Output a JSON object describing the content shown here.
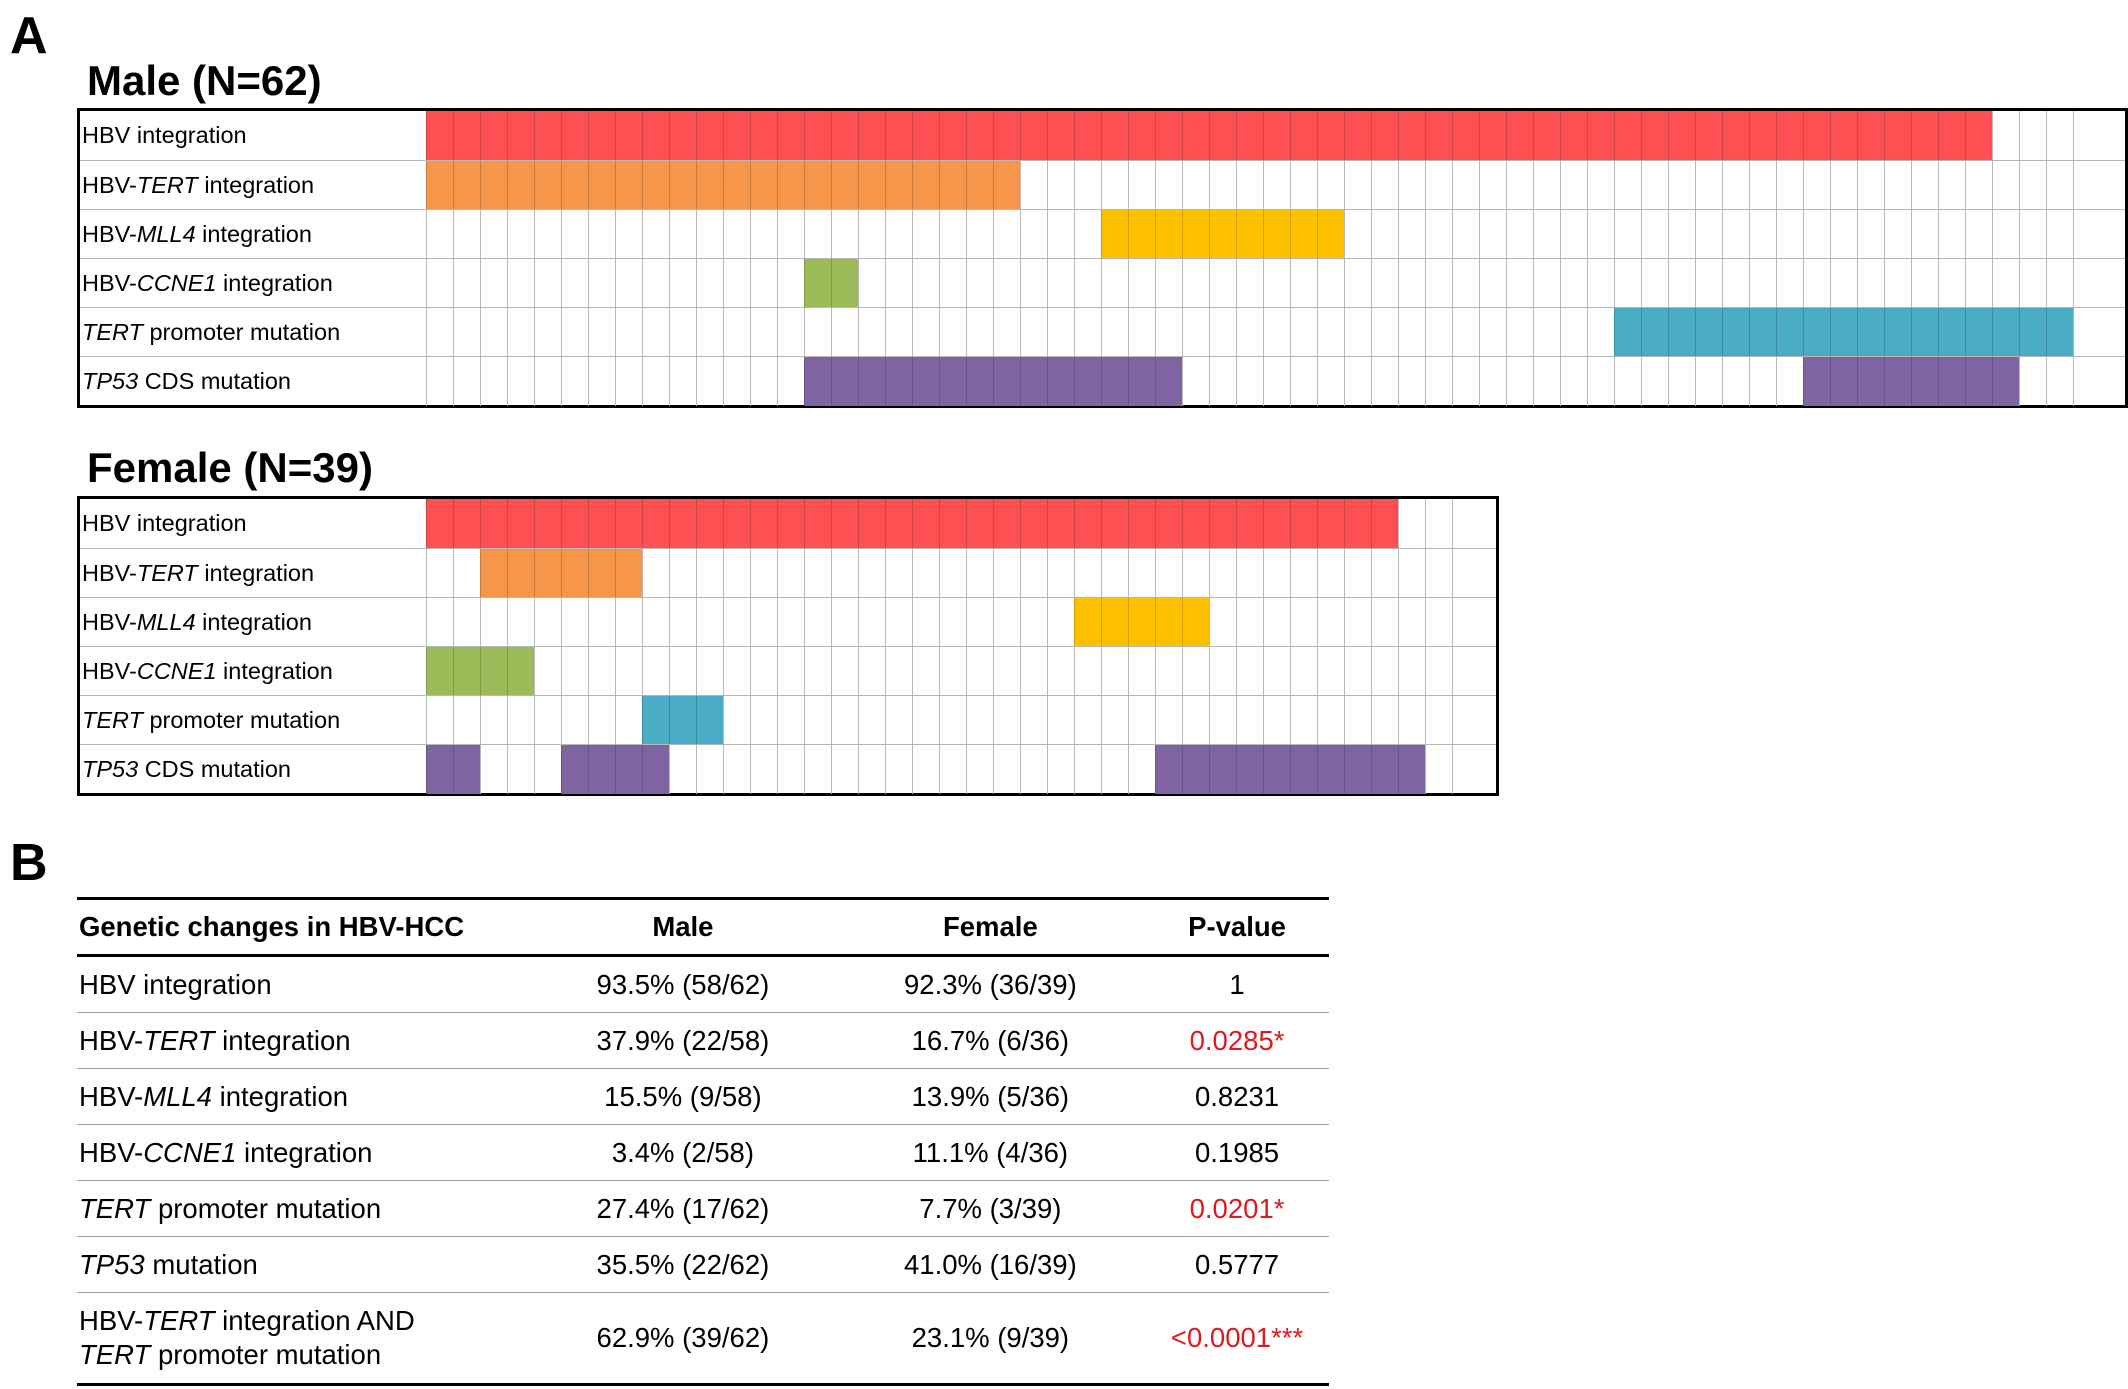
{
  "panel_a_letter": "A",
  "panel_b_letter": "B",
  "colors": {
    "hbv_integration": "#fe5052",
    "hbv_tert": "#f7954b",
    "hbv_mll4": "#fec100",
    "hbv_ccne1": "#9bbb59",
    "tert_promoter": "#4bacc6",
    "tp53": "#8064a2",
    "significant_text": "#e0191e"
  },
  "male": {
    "title": "Male (N=62)",
    "n_columns": 62,
    "rows": [
      {
        "pre": "HBV integration",
        "gene": "",
        "post": "",
        "color_key": "hbv_integration",
        "filled": [
          [
            0,
            57
          ]
        ]
      },
      {
        "pre": "HBV-",
        "gene": "TERT",
        "post": " integration",
        "color_key": "hbv_tert",
        "filled": [
          [
            0,
            21
          ]
        ]
      },
      {
        "pre": "HBV-",
        "gene": "MLL4",
        "post": " integration",
        "color_key": "hbv_mll4",
        "filled": [
          [
            25,
            33
          ]
        ]
      },
      {
        "pre": "HBV-",
        "gene": "CCNE1",
        "post": " integration",
        "color_key": "hbv_ccne1",
        "filled": [
          [
            14,
            15
          ]
        ]
      },
      {
        "pre": "",
        "gene": "TERT",
        "post": " promoter  mutation",
        "color_key": "tert_promoter",
        "filled": [
          [
            44,
            60
          ]
        ]
      },
      {
        "pre": "",
        "gene": "TP53",
        "post": " CDS mutation",
        "color_key": "tp53",
        "filled": [
          [
            14,
            27
          ],
          [
            51,
            58
          ]
        ]
      }
    ]
  },
  "female": {
    "title": "Female (N=39)",
    "n_columns": 39,
    "rows": [
      {
        "pre": "HBV integration",
        "gene": "",
        "post": "",
        "color_key": "hbv_integration",
        "filled": [
          [
            0,
            35
          ]
        ]
      },
      {
        "pre": "HBV-",
        "gene": "TERT",
        "post": " integration",
        "color_key": "hbv_tert",
        "filled": [
          [
            2,
            7
          ]
        ]
      },
      {
        "pre": "HBV-",
        "gene": "MLL4",
        "post": " integration",
        "color_key": "hbv_mll4",
        "filled": [
          [
            24,
            28
          ]
        ]
      },
      {
        "pre": "HBV-",
        "gene": "CCNE1",
        "post": " integration",
        "color_key": "hbv_ccne1",
        "filled": [
          [
            0,
            3
          ]
        ]
      },
      {
        "pre": "",
        "gene": "TERT",
        "post": " promoter  mutation",
        "color_key": "tert_promoter",
        "filled": [
          [
            8,
            10
          ]
        ]
      },
      {
        "pre": "",
        "gene": "TP53",
        "post": " CDS mutation",
        "color_key": "tp53",
        "filled": [
          [
            0,
            1
          ],
          [
            5,
            8
          ],
          [
            27,
            36
          ]
        ]
      }
    ]
  },
  "table": {
    "headers": [
      "Genetic changes in HBV-HCC",
      "Male",
      "Female",
      "P-value"
    ],
    "rows": [
      {
        "label": [
          {
            "t": "HBV integration",
            "i": false
          }
        ],
        "male": "93.5%  (58/62)",
        "female": "92.3%  (36/39)",
        "p": "1",
        "sig": false
      },
      {
        "label": [
          {
            "t": "HBV-",
            "i": false
          },
          {
            "t": "TERT",
            "i": true
          },
          {
            "t": " integration",
            "i": false
          }
        ],
        "male": "37.9%  (22/58)",
        "female": "16.7%  (6/36)",
        "p": "0.0285*",
        "sig": true
      },
      {
        "label": [
          {
            "t": "HBV-",
            "i": false
          },
          {
            "t": "MLL4",
            "i": true
          },
          {
            "t": " integration",
            "i": false
          }
        ],
        "male": "15.5%  (9/58)",
        "female": "13.9%  (5/36)",
        "p": "0.8231",
        "sig": false
      },
      {
        "label": [
          {
            "t": "HBV-",
            "i": false
          },
          {
            "t": "CCNE1",
            "i": true
          },
          {
            "t": " integration",
            "i": false
          }
        ],
        "male": "3.4%  (2/58)",
        "female": "11.1%  (4/36)",
        "p": "0.1985",
        "sig": false
      },
      {
        "label": [
          {
            "t": "TERT",
            "i": true
          },
          {
            "t": " promoter mutation",
            "i": false
          }
        ],
        "male": "27.4%  (17/62)",
        "female": "7.7%  (3/39)",
        "p": "0.0201*",
        "sig": true
      },
      {
        "label": [
          {
            "t": "TP53",
            "i": true
          },
          {
            "t": " mutation",
            "i": false
          }
        ],
        "male": "35.5%  (22/62)",
        "female": "41.0%  (16/39)",
        "p": "0.5777",
        "sig": false
      },
      {
        "label": [
          {
            "t": "HBV-",
            "i": false
          },
          {
            "t": "TERT",
            "i": true
          },
          {
            "t": " integration AND",
            "i": false
          },
          {
            "br": true
          },
          {
            "t": "TERT",
            "i": true
          },
          {
            "t": " promoter mutation",
            "i": false
          }
        ],
        "male": "62.9%  (39/62)",
        "female": "23.1%  (9/39)",
        "p": "<0.0001***",
        "sig": true
      }
    ]
  }
}
